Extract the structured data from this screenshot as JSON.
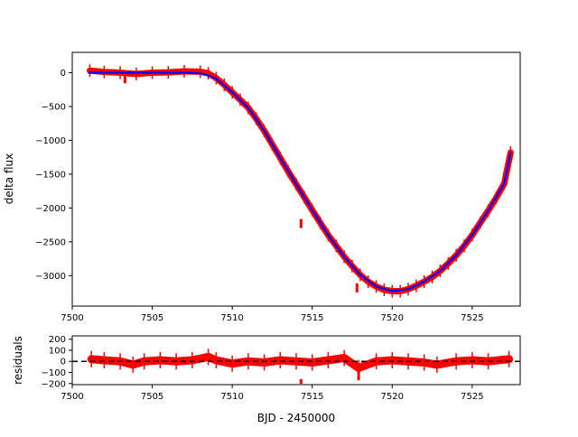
{
  "chart_data": [
    {
      "type": "scatter",
      "title": "",
      "xlabel": "",
      "ylabel": "delta flux",
      "xlim": [
        7500,
        7528
      ],
      "ylim": [
        -3450,
        300
      ],
      "xticks": [
        7500,
        7505,
        7510,
        7515,
        7520,
        7525
      ],
      "yticks": [
        0,
        -500,
        -1000,
        -1500,
        -2000,
        -2500,
        -3000
      ],
      "ytick_labels": [
        "0",
        "−500",
        "−1000",
        "−1500",
        "−2000",
        "−2500",
        "−3000"
      ],
      "series": [
        {
          "kind": "data-with-errorbars",
          "color": "#ff0000",
          "x": [
            7501.1,
            7502.0,
            7503.0,
            7504.0,
            7505.0,
            7506.0,
            7507.0,
            7508.0,
            7508.5,
            7509.0,
            7509.5,
            7510.0,
            7510.5,
            7511.0,
            7511.5,
            7512.0,
            7512.5,
            7513.0,
            7513.5,
            7514.0,
            7514.5,
            7515.0,
            7515.5,
            7516.0,
            7516.5,
            7517.0,
            7517.5,
            7518.0,
            7518.5,
            7519.0,
            7519.5,
            7520.0,
            7520.5,
            7521.0,
            7521.5,
            7522.0,
            7522.5,
            7523.0,
            7523.5,
            7524.0,
            7524.5,
            7525.0,
            7525.5,
            7526.0,
            7526.5,
            7527.0,
            7527.4
          ],
          "y": [
            30,
            10,
            0,
            -20,
            0,
            5,
            20,
            15,
            -10,
            -80,
            -180,
            -290,
            -400,
            -520,
            -680,
            -860,
            -1060,
            -1260,
            -1460,
            -1650,
            -1840,
            -2030,
            -2220,
            -2400,
            -2560,
            -2720,
            -2860,
            -2990,
            -3090,
            -3160,
            -3210,
            -3230,
            -3230,
            -3200,
            -3150,
            -3090,
            -3020,
            -2930,
            -2820,
            -2700,
            -2560,
            -2400,
            -2220,
            -2040,
            -1850,
            -1640,
            -1180
          ]
        },
        {
          "kind": "model",
          "color": "#0000ff",
          "x": [
            7501,
            7504,
            7507,
            7508,
            7508.5,
            7509,
            7510,
            7511,
            7512,
            7513,
            7514,
            7515,
            7516,
            7517,
            7518,
            7519,
            7520,
            7521,
            7522,
            7523,
            7524,
            7525,
            7526,
            7527,
            7527.4
          ],
          "y": [
            0,
            0,
            0,
            -10,
            -40,
            -90,
            -290,
            -520,
            -860,
            -1260,
            -1650,
            -2030,
            -2400,
            -2720,
            -2990,
            -3160,
            -3230,
            -3200,
            -3090,
            -2930,
            -2700,
            -2400,
            -2040,
            -1640,
            -1180
          ]
        }
      ],
      "outliers": [
        {
          "x": 7514.3,
          "y": -2230
        },
        {
          "x": 7517.8,
          "y": -3180
        },
        {
          "x": 7503.3,
          "y": -90
        }
      ]
    },
    {
      "type": "scatter",
      "title": "",
      "xlabel": "BJD - 2450000",
      "ylabel": "residuals",
      "xlim": [
        7500,
        7528
      ],
      "ylim": [
        -210,
        230
      ],
      "xticks": [
        7500,
        7505,
        7510,
        7515,
        7520,
        7525
      ],
      "yticks": [
        200,
        100,
        0,
        -100,
        -200
      ],
      "ytick_labels": [
        "200",
        "100",
        "0",
        "−100",
        "−200"
      ],
      "reference_line": {
        "y": 0,
        "style": "dashed",
        "color": "#000000"
      },
      "series": [
        {
          "kind": "residuals",
          "color": "#ff0000",
          "x": [
            7501.2,
            7502.0,
            7503.0,
            7503.8,
            7504.5,
            7505.5,
            7506.5,
            7507.5,
            7508.5,
            7509.0,
            7510.0,
            7511.0,
            7512.0,
            7513.0,
            7514.0,
            7515.0,
            7516.0,
            7517.0,
            7517.9,
            7519.0,
            7520.0,
            7521.0,
            7522.0,
            7522.8,
            7524.0,
            7525.0,
            7526.0,
            7527.3
          ],
          "y": [
            20,
            10,
            0,
            -30,
            0,
            10,
            0,
            10,
            40,
            10,
            -20,
            0,
            -10,
            10,
            0,
            -10,
            10,
            30,
            -60,
            0,
            10,
            0,
            -10,
            -30,
            0,
            10,
            0,
            20
          ]
        }
      ],
      "outliers": [
        {
          "x": 7514.3,
          "y": -200
        },
        {
          "x": 7517.9,
          "y": -130
        }
      ]
    }
  ]
}
